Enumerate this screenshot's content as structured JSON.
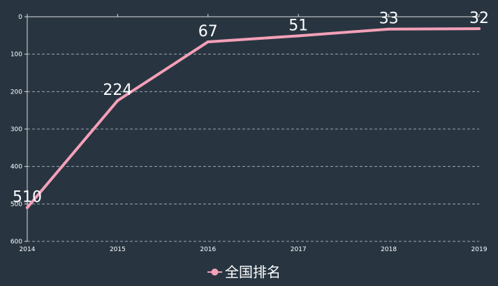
{
  "chart_data": {
    "type": "line",
    "x": [
      "2014",
      "2015",
      "2016",
      "2017",
      "2018",
      "2019"
    ],
    "y_ticks": [
      "0",
      "100",
      "200",
      "300",
      "400",
      "500",
      "600"
    ],
    "ylim": [
      0,
      600
    ],
    "y_inverted": true,
    "grid": true,
    "legend_position": "bottom-center",
    "series": [
      {
        "name": "全国排名",
        "values": [
          510,
          224,
          67,
          51,
          33,
          32
        ],
        "labels": [
          "510",
          "224",
          "67",
          "51",
          "33",
          "32"
        ]
      }
    ],
    "colors": {
      "background": "#283541",
      "line": "#f4a0b8",
      "axis": "#dddddd",
      "grid": "#a0a8b0",
      "text": "#ffffff"
    }
  }
}
